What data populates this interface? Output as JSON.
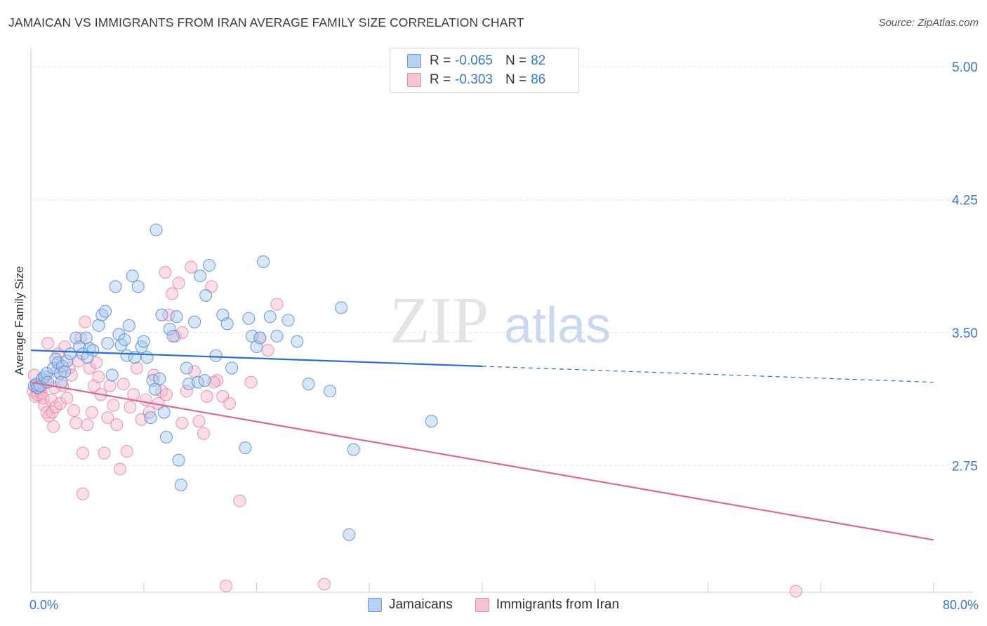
{
  "header": {
    "title": "JAMAICAN VS IMMIGRANTS FROM IRAN AVERAGE FAMILY SIZE CORRELATION CHART",
    "source": "Source: ZipAtlas.com"
  },
  "legend": {
    "rows": [
      {
        "r_label": "R =",
        "r_value": "-0.065",
        "n_label": "N =",
        "n_value": "82"
      },
      {
        "r_label": "R =",
        "r_value": "-0.303",
        "n_label": "N =",
        "n_value": "86"
      }
    ]
  },
  "watermark": {
    "zip": "ZIP",
    "atlas": "atlas"
  },
  "colors": {
    "blue_fill": "#a9c8ee",
    "blue_stroke": "#5b8fd6",
    "blue_line": "#2a6fcc",
    "pink_fill": "#f4b8cb",
    "pink_stroke": "#e889a7",
    "pink_line": "#e06690",
    "axis_text": "#3a78c9",
    "grid": "#e3e3e3"
  },
  "chart_data": {
    "type": "scatter",
    "title": "JAMAICAN VS IMMIGRANTS FROM IRAN AVERAGE FAMILY SIZE CORRELATION CHART",
    "xlabel": "",
    "ylabel": "Average Family Size",
    "xlim": [
      0,
      80
    ],
    "ylim": [
      2.05,
      5.1
    ],
    "x_tick_labels": [
      "0.0%",
      "80.0%"
    ],
    "y_ticks": [
      2.75,
      3.5,
      4.25,
      5.0
    ],
    "y_tick_labels": [
      "2.75",
      "3.50",
      "4.25",
      "5.00"
    ],
    "grid": true,
    "legend_position": "top-center",
    "series": [
      {
        "name": "Jamaicans",
        "color": "#5b8fd6",
        "r": -0.065,
        "n": 82,
        "trend": {
          "x": [
            0,
            40
          ],
          "y": [
            3.4,
            3.31
          ],
          "dashed_to": [
            80,
            3.22
          ]
        },
        "points": [
          [
            0.3,
            3.2
          ],
          [
            0.5,
            3.21
          ],
          [
            0.6,
            3.19
          ],
          [
            0.8,
            3.2
          ],
          [
            1.0,
            3.24
          ],
          [
            1.2,
            3.25
          ],
          [
            1.4,
            3.27
          ],
          [
            1.5,
            3.22
          ],
          [
            2.0,
            3.3
          ],
          [
            2.2,
            3.35
          ],
          [
            2.4,
            3.33
          ],
          [
            2.6,
            3.27
          ],
          [
            2.8,
            3.31
          ],
          [
            3.0,
            3.28
          ],
          [
            3.2,
            3.34
          ],
          [
            3.5,
            3.38
          ],
          [
            4.0,
            3.47
          ],
          [
            4.3,
            3.42
          ],
          [
            4.6,
            3.38
          ],
          [
            4.9,
            3.47
          ],
          [
            5.2,
            3.41
          ],
          [
            5.5,
            3.4
          ],
          [
            6.0,
            3.54
          ],
          [
            6.3,
            3.6
          ],
          [
            6.6,
            3.62
          ],
          [
            6.8,
            3.44
          ],
          [
            7.2,
            3.26
          ],
          [
            7.5,
            3.76
          ],
          [
            7.8,
            3.49
          ],
          [
            8.0,
            3.43
          ],
          [
            8.3,
            3.46
          ],
          [
            8.5,
            3.37
          ],
          [
            8.7,
            3.54
          ],
          [
            9.0,
            3.82
          ],
          [
            9.2,
            3.36
          ],
          [
            9.5,
            3.76
          ],
          [
            9.8,
            3.42
          ],
          [
            10.0,
            3.45
          ],
          [
            10.3,
            3.36
          ],
          [
            10.6,
            3.02
          ],
          [
            10.8,
            3.23
          ],
          [
            11.1,
            4.08
          ],
          [
            11.4,
            3.24
          ],
          [
            11.6,
            3.6
          ],
          [
            11.8,
            3.05
          ],
          [
            12.0,
            2.91
          ],
          [
            12.3,
            3.52
          ],
          [
            12.6,
            3.48
          ],
          [
            12.9,
            3.59
          ],
          [
            13.1,
            2.78
          ],
          [
            13.3,
            2.64
          ],
          [
            14.0,
            3.21
          ],
          [
            14.5,
            3.56
          ],
          [
            14.8,
            3.22
          ],
          [
            15.0,
            3.82
          ],
          [
            15.5,
            3.71
          ],
          [
            15.8,
            3.88
          ],
          [
            16.4,
            3.37
          ],
          [
            17.0,
            3.6
          ],
          [
            17.4,
            3.55
          ],
          [
            17.8,
            3.3
          ],
          [
            19.0,
            2.85
          ],
          [
            19.3,
            3.58
          ],
          [
            19.6,
            3.48
          ],
          [
            20.0,
            3.42
          ],
          [
            20.3,
            3.47
          ],
          [
            20.6,
            3.9
          ],
          [
            21.2,
            3.59
          ],
          [
            21.8,
            3.48
          ],
          [
            22.8,
            3.57
          ],
          [
            23.6,
            3.45
          ],
          [
            24.6,
            3.21
          ],
          [
            26.5,
            3.17
          ],
          [
            27.5,
            3.64
          ],
          [
            28.2,
            2.36
          ],
          [
            28.6,
            2.84
          ],
          [
            35.5,
            3.0
          ],
          [
            2.7,
            3.22
          ],
          [
            5.0,
            3.36
          ],
          [
            15.4,
            3.23
          ],
          [
            11.0,
            3.18
          ],
          [
            13.8,
            3.3
          ]
        ]
      },
      {
        "name": "Immigrants from Iran",
        "color": "#e889a7",
        "r": -0.303,
        "n": 86,
        "trend": {
          "x": [
            0,
            80
          ],
          "y": [
            3.22,
            2.33
          ]
        },
        "points": [
          [
            0.2,
            3.17
          ],
          [
            0.3,
            3.26
          ],
          [
            0.4,
            3.14
          ],
          [
            0.5,
            3.19
          ],
          [
            0.6,
            3.15
          ],
          [
            0.7,
            3.21
          ],
          [
            0.8,
            3.18
          ],
          [
            0.9,
            3.16
          ],
          [
            1.0,
            3.2
          ],
          [
            1.1,
            3.13
          ],
          [
            1.2,
            3.09
          ],
          [
            1.3,
            3.23
          ],
          [
            1.4,
            3.05
          ],
          [
            1.5,
            3.44
          ],
          [
            1.6,
            3.03
          ],
          [
            1.8,
            3.12
          ],
          [
            1.9,
            3.05
          ],
          [
            2.0,
            2.97
          ],
          [
            2.1,
            3.19
          ],
          [
            2.2,
            3.08
          ],
          [
            2.3,
            3.28
          ],
          [
            2.4,
            3.38
          ],
          [
            2.6,
            3.1
          ],
          [
            2.8,
            3.2
          ],
          [
            3.0,
            3.42
          ],
          [
            3.2,
            3.13
          ],
          [
            3.4,
            3.3
          ],
          [
            3.6,
            3.26
          ],
          [
            3.8,
            3.06
          ],
          [
            4.0,
            2.99
          ],
          [
            4.2,
            3.34
          ],
          [
            4.4,
            3.47
          ],
          [
            4.6,
            2.82
          ],
          [
            4.8,
            3.56
          ],
          [
            5.0,
            2.98
          ],
          [
            5.2,
            3.3
          ],
          [
            5.4,
            3.05
          ],
          [
            5.6,
            3.2
          ],
          [
            5.8,
            3.33
          ],
          [
            6.0,
            3.25
          ],
          [
            6.2,
            3.15
          ],
          [
            6.5,
            2.82
          ],
          [
            6.8,
            3.02
          ],
          [
            7.0,
            3.2
          ],
          [
            7.3,
            3.09
          ],
          [
            7.6,
            2.98
          ],
          [
            7.9,
            2.73
          ],
          [
            8.2,
            3.21
          ],
          [
            8.5,
            2.83
          ],
          [
            8.8,
            3.08
          ],
          [
            9.1,
            3.15
          ],
          [
            9.4,
            3.3
          ],
          [
            9.8,
            3.01
          ],
          [
            10.2,
            3.12
          ],
          [
            10.5,
            3.05
          ],
          [
            10.9,
            3.26
          ],
          [
            11.3,
            3.1
          ],
          [
            11.6,
            3.17
          ],
          [
            11.9,
            3.84
          ],
          [
            12.2,
            3.6
          ],
          [
            12.5,
            3.72
          ],
          [
            12.8,
            3.48
          ],
          [
            13.1,
            3.78
          ],
          [
            13.4,
            3.5
          ],
          [
            13.8,
            3.17
          ],
          [
            14.2,
            3.87
          ],
          [
            14.5,
            3.28
          ],
          [
            14.9,
            3.0
          ],
          [
            15.3,
            2.93
          ],
          [
            15.6,
            3.14
          ],
          [
            16.0,
            3.76
          ],
          [
            16.5,
            3.23
          ],
          [
            17.0,
            3.14
          ],
          [
            17.6,
            3.1
          ],
          [
            18.5,
            2.55
          ],
          [
            19.5,
            3.22
          ],
          [
            20.3,
            3.47
          ],
          [
            21.0,
            3.4
          ],
          [
            21.8,
            3.66
          ],
          [
            12.0,
            3.15
          ],
          [
            13.4,
            2.99
          ],
          [
            16.2,
            3.22
          ],
          [
            17.3,
            2.07
          ],
          [
            26.0,
            2.08
          ],
          [
            67.8,
            2.04
          ],
          [
            4.6,
            2.59
          ]
        ]
      }
    ]
  }
}
